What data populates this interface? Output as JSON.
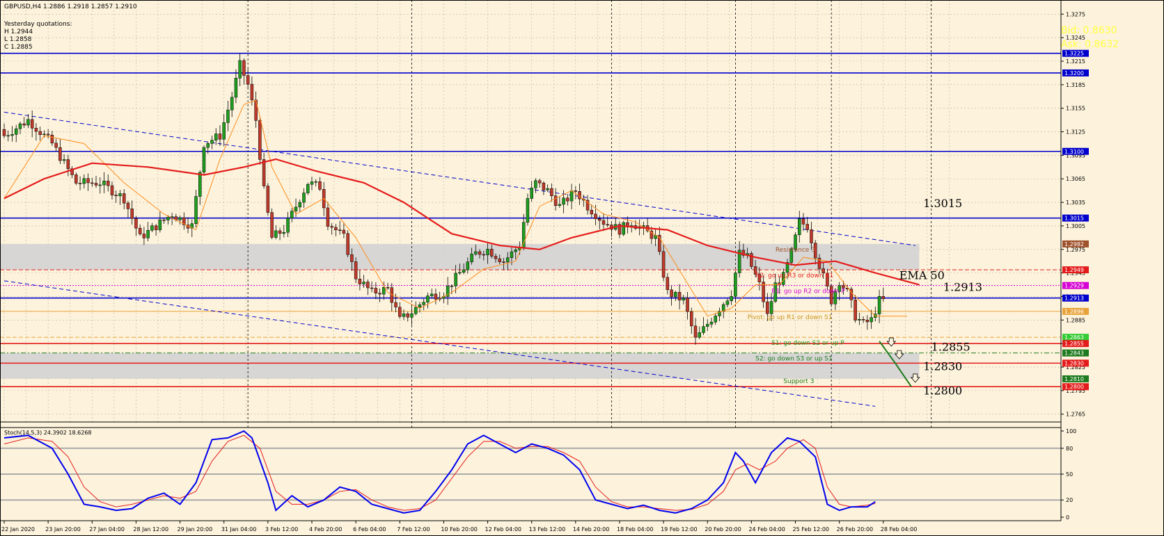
{
  "header": {
    "symbol_line": "GBPUSD,H4  1.2886 1.2918 1.2857 1.2910",
    "yq_title": "Yesterday quotations:",
    "yq_high": "H 1.2944",
    "yq_low": "L 1.2858",
    "yq_close": "C 1.2885"
  },
  "quotes": {
    "bid": "Bid: 0.8630",
    "ask": "Ask: 0.8632"
  },
  "colors": {
    "background": "#fdf3dc",
    "bull": "#1e9e1e",
    "bear": "#c0392b",
    "ema": "#e41b1b",
    "fast_ma": "#ff8c1a",
    "levels": "#0000cc",
    "channel": "#0000cc",
    "zone": "#d3d3d3",
    "stoch_main": "#0000ee",
    "stoch_signal": "#e41b1b",
    "quote": "#ffff40"
  },
  "chart_data": {
    "type": "candlestick",
    "ylim": [
      1.2755,
      1.3293
    ],
    "y_ticks": [
      "1.3275",
      "1.3245",
      "1.3215",
      "1.3185",
      "1.3155",
      "1.3125",
      "1.3095",
      "1.3065",
      "1.3035",
      "1.3005",
      "1.2975",
      "1.2945",
      "1.2915",
      "1.2885",
      "1.2855",
      "1.2825",
      "1.2795",
      "1.2765"
    ],
    "x_labels": [
      {
        "label": "22 Jan 2020",
        "i": 0
      },
      {
        "label": "23 Jan 20:00",
        "i": 11
      },
      {
        "label": "27 Jan 04:00",
        "i": 22
      },
      {
        "label": "28 Jan 12:00",
        "i": 33
      },
      {
        "label": "29 Jan 20:00",
        "i": 44
      },
      {
        "label": "31 Jan 04:00",
        "i": 55
      },
      {
        "label": "3 Feb 12:00",
        "i": 66
      },
      {
        "label": "4 Feb 20:00",
        "i": 77
      },
      {
        "label": "6 Feb 04:00",
        "i": 88
      },
      {
        "label": "7 Feb 12:00",
        "i": 99
      },
      {
        "label": "10 Feb 20:00",
        "i": 110
      },
      {
        "label": "12 Feb 04:00",
        "i": 121
      },
      {
        "label": "13 Feb 12:00",
        "i": 132
      },
      {
        "label": "14 Feb 20:00",
        "i": 143
      },
      {
        "label": "18 Feb 04:00",
        "i": 154
      },
      {
        "label": "19 Feb 12:00",
        "i": 165
      },
      {
        "label": "20 Feb 20:00",
        "i": 176
      },
      {
        "label": "24 Feb 04:00",
        "i": 187
      },
      {
        "label": "25 Feb 12:00",
        "i": 198
      },
      {
        "label": "26 Feb 20:00",
        "i": 209
      },
      {
        "label": "28 Feb 04:00",
        "i": 220
      }
    ],
    "close_waypoints": [
      [
        0,
        1.312
      ],
      [
        6,
        1.314
      ],
      [
        12,
        1.311
      ],
      [
        18,
        1.306
      ],
      [
        24,
        1.306
      ],
      [
        30,
        1.304
      ],
      [
        34,
        1.299
      ],
      [
        42,
        1.302
      ],
      [
        47,
        1.3005
      ],
      [
        50,
        1.311
      ],
      [
        54,
        1.312
      ],
      [
        57,
        1.317
      ],
      [
        59,
        1.321
      ],
      [
        61,
        1.3185
      ],
      [
        63,
        1.314
      ],
      [
        65,
        1.305
      ],
      [
        67,
        1.299
      ],
      [
        70,
        1.3
      ],
      [
        73,
        1.303
      ],
      [
        76,
        1.306
      ],
      [
        79,
        1.3055
      ],
      [
        81,
        1.301
      ],
      [
        85,
        1.299
      ],
      [
        88,
        1.294
      ],
      [
        92,
        1.292
      ],
      [
        96,
        1.2925
      ],
      [
        99,
        1.2885
      ],
      [
        102,
        1.2895
      ],
      [
        106,
        1.2915
      ],
      [
        110,
        1.292
      ],
      [
        114,
        1.2945
      ],
      [
        118,
        1.297
      ],
      [
        121,
        1.2975
      ],
      [
        125,
        1.296
      ],
      [
        129,
        1.298
      ],
      [
        131,
        1.304
      ],
      [
        133,
        1.306
      ],
      [
        136,
        1.305
      ],
      [
        139,
        1.303
      ],
      [
        143,
        1.305
      ],
      [
        146,
        1.303
      ],
      [
        150,
        1.301
      ],
      [
        154,
        1.3
      ],
      [
        157,
        1.301
      ],
      [
        160,
        1.3
      ],
      [
        163,
        1.299
      ],
      [
        166,
        1.292
      ],
      [
        170,
        1.291
      ],
      [
        173,
        1.286
      ],
      [
        176,
        1.288
      ],
      [
        179,
        1.29
      ],
      [
        182,
        1.292
      ],
      [
        184,
        1.297
      ],
      [
        186,
        1.2965
      ],
      [
        189,
        1.293
      ],
      [
        191,
        1.289
      ],
      [
        193,
        1.293
      ],
      [
        195,
        1.294
      ],
      [
        197,
        1.297
      ],
      [
        199,
        1.301
      ],
      [
        201,
        1.3005
      ],
      [
        203,
        1.297
      ],
      [
        205,
        1.294
      ],
      [
        207,
        1.291
      ],
      [
        209,
        1.2935
      ],
      [
        211,
        1.292
      ],
      [
        213,
        1.289
      ],
      [
        215,
        1.288
      ],
      [
        217,
        1.2885
      ],
      [
        219,
        1.291
      ],
      [
        220,
        1.291
      ]
    ],
    "candle_count": 221,
    "ema50": [
      [
        0,
        1.304
      ],
      [
        10,
        1.3065
      ],
      [
        22,
        1.3085
      ],
      [
        36,
        1.308
      ],
      [
        50,
        1.307
      ],
      [
        60,
        1.308
      ],
      [
        68,
        1.309
      ],
      [
        78,
        1.3075
      ],
      [
        90,
        1.306
      ],
      [
        100,
        1.3035
      ],
      [
        112,
        1.2995
      ],
      [
        124,
        1.298
      ],
      [
        134,
        1.2975
      ],
      [
        142,
        1.299
      ],
      [
        154,
        1.3005
      ],
      [
        166,
        1.3
      ],
      [
        176,
        1.298
      ],
      [
        188,
        1.2965
      ],
      [
        198,
        1.2955
      ],
      [
        208,
        1.296
      ],
      [
        218,
        1.2945
      ],
      [
        229,
        1.293
      ]
    ],
    "fast_ma": [
      [
        0,
        1.304
      ],
      [
        10,
        1.312
      ],
      [
        20,
        1.311
      ],
      [
        30,
        1.306
      ],
      [
        40,
        1.302
      ],
      [
        48,
        1.3
      ],
      [
        54,
        1.309
      ],
      [
        60,
        1.316
      ],
      [
        63,
        1.3165
      ],
      [
        67,
        1.308
      ],
      [
        73,
        1.302
      ],
      [
        80,
        1.304
      ],
      [
        88,
        1.299
      ],
      [
        96,
        1.292
      ],
      [
        104,
        1.29
      ],
      [
        112,
        1.292
      ],
      [
        120,
        1.295
      ],
      [
        128,
        1.296
      ],
      [
        134,
        1.303
      ],
      [
        142,
        1.305
      ],
      [
        150,
        1.302
      ],
      [
        158,
        1.301
      ],
      [
        164,
        1.299
      ],
      [
        170,
        1.294
      ],
      [
        176,
        1.289
      ],
      [
        182,
        1.29
      ],
      [
        188,
        1.293
      ],
      [
        194,
        1.293
      ],
      [
        200,
        1.2965
      ],
      [
        206,
        1.296
      ],
      [
        212,
        1.292
      ],
      [
        218,
        1.289
      ],
      [
        226,
        1.289
      ]
    ],
    "h_levels": [
      {
        "price": 1.3225,
        "label": "1.3225",
        "style": "solid",
        "color": "#0000cc"
      },
      {
        "price": 1.32,
        "label": "1.3200",
        "style": "solid",
        "color": "#0000cc"
      },
      {
        "price": 1.31,
        "label": "1.3100",
        "style": "solid",
        "color": "#0000cc"
      },
      {
        "price": 1.3015,
        "label": "1.3015",
        "style": "solid",
        "color": "#0000cc"
      },
      {
        "price": 1.2913,
        "label": "1.2913",
        "style": "solid",
        "color": "#0000cc"
      },
      {
        "price": 1.2855,
        "label": "1.2855",
        "style": "solid",
        "color": "#e41b1b"
      },
      {
        "price": 1.283,
        "label": "1.2830",
        "style": "solid",
        "color": "#e41b1b"
      },
      {
        "price": 1.28,
        "label": "1.2800",
        "style": "solid",
        "color": "#e41b1b"
      }
    ],
    "pivot_lines": [
      {
        "price": 1.2949,
        "style": "dashed",
        "color": "#e41b1b",
        "text": "R2: go up R3 or down R1",
        "text_i": 188,
        "text_color": "#e41b1b"
      },
      {
        "price": 1.2929,
        "style": "dotted",
        "color": "#d400d4",
        "text": "R1: go up R2 or down P",
        "text_i": 192,
        "text_color": "#d400d4"
      },
      {
        "price": 1.2896,
        "style": "solid",
        "color": "#e8a33a",
        "text": "Pivot: go up R1 or down S1",
        "text_i": 186,
        "text_color": "#c8941e"
      },
      {
        "price": 1.2863,
        "style": "dashed",
        "color": "#e8a33a",
        "text": "S1: go down S2 or up P",
        "text_i": 192,
        "text_color": "#1e9e1e"
      },
      {
        "price": 1.2843,
        "style": "dashdot",
        "color": "#1e7a1e",
        "text": "S2: go down S3 or up S1",
        "text_i": 188,
        "text_color": "#1e7a1e"
      }
    ],
    "zones": [
      {
        "top": 1.2982,
        "bottom": 1.2949,
        "label": "Resistance 3",
        "label_i": 193,
        "label_color": "#a0522d"
      },
      {
        "top": 1.2843,
        "bottom": 1.281,
        "label": "Support 3",
        "label_i": 195,
        "label_color": "#1e7a1e"
      }
    ],
    "price_tags": [
      {
        "price": 1.3225,
        "text": "1.3225",
        "bg": "#0000cc",
        "fg": "#ffffff"
      },
      {
        "price": 1.32,
        "text": "1.3200",
        "bg": "#0000cc",
        "fg": "#ffffff"
      },
      {
        "price": 1.31,
        "text": "1.3100",
        "bg": "#0000cc",
        "fg": "#ffffff"
      },
      {
        "price": 1.3015,
        "text": "1.3015",
        "bg": "#0000cc",
        "fg": "#ffffff"
      },
      {
        "price": 1.2982,
        "text": "1.2982",
        "bg": "#a0522d",
        "fg": "#ffffff"
      },
      {
        "price": 1.2949,
        "text": "1.2949",
        "bg": "#e41b1b",
        "fg": "#ffffff"
      },
      {
        "price": 1.2929,
        "text": "1.2929",
        "bg": "#d400d4",
        "fg": "#ffffff"
      },
      {
        "price": 1.2913,
        "text": "1.2913",
        "bg": "#0000cc",
        "fg": "#ffffff"
      },
      {
        "price": 1.2896,
        "text": "1.2896",
        "bg": "#e8a33a",
        "fg": "#ffffff"
      },
      {
        "price": 1.2863,
        "text": "1.2863",
        "bg": "#33cc33",
        "fg": "#ffffff"
      },
      {
        "price": 1.2855,
        "text": "1.2855",
        "bg": "#e41b1b",
        "fg": "#ffffff"
      },
      {
        "price": 1.2843,
        "text": "1.2843",
        "bg": "#1e7a1e",
        "fg": "#ffffff"
      },
      {
        "price": 1.283,
        "text": "1.2830",
        "bg": "#e41b1b",
        "fg": "#ffffff"
      },
      {
        "price": 1.281,
        "text": "1.2810",
        "bg": "#1e7a1e",
        "fg": "#ffffff"
      },
      {
        "price": 1.28,
        "text": "1.2800",
        "bg": "#e41b1b",
        "fg": "#ffffff"
      }
    ],
    "channel_lines": [
      {
        "from": [
          0,
          1.315
        ],
        "to": [
          228,
          1.298
        ]
      },
      {
        "from": [
          0,
          1.2935
        ],
        "to": [
          218,
          1.2775
        ]
      }
    ],
    "big_labels": [
      {
        "text": "1.3015",
        "price": 1.3029,
        "i": 230
      },
      {
        "text": "EMA 50",
        "price": 1.2937,
        "i": 224
      },
      {
        "text": "1.2913",
        "price": 1.2922,
        "i": 235
      },
      {
        "text": "1.2855",
        "price": 1.2846,
        "i": 232
      },
      {
        "text": "1.2830",
        "price": 1.2821,
        "i": 230
      },
      {
        "text": "1.2800",
        "price": 1.279,
        "i": 230
      }
    ],
    "forecast": [
      [
        219,
        1.2858
      ],
      [
        223,
        1.283
      ],
      [
        227,
        1.28
      ]
    ],
    "forecast_arrows": [
      [
        222,
        1.2856
      ],
      [
        224,
        1.284
      ],
      [
        228,
        1.281
      ]
    ],
    "vlines": [
      61,
      102,
      152,
      183,
      207,
      232
    ],
    "stoch": {
      "title": "Stoch(14,5,3) 24.3902 18.6268",
      "ylim": [
        0,
        100
      ],
      "y_ticks": [
        "100",
        "80",
        "50",
        "20",
        "0"
      ],
      "levels": [
        80,
        50,
        20
      ],
      "main": [
        [
          0,
          92
        ],
        [
          6,
          95
        ],
        [
          12,
          80
        ],
        [
          16,
          50
        ],
        [
          20,
          15
        ],
        [
          24,
          12
        ],
        [
          28,
          8
        ],
        [
          32,
          10
        ],
        [
          36,
          22
        ],
        [
          40,
          28
        ],
        [
          44,
          15
        ],
        [
          48,
          40
        ],
        [
          52,
          90
        ],
        [
          56,
          92
        ],
        [
          60,
          100
        ],
        [
          62,
          92
        ],
        [
          66,
          40
        ],
        [
          68,
          8
        ],
        [
          72,
          25
        ],
        [
          76,
          12
        ],
        [
          80,
          20
        ],
        [
          84,
          35
        ],
        [
          88,
          30
        ],
        [
          92,
          15
        ],
        [
          96,
          10
        ],
        [
          100,
          5
        ],
        [
          104,
          8
        ],
        [
          108,
          30
        ],
        [
          112,
          55
        ],
        [
          116,
          85
        ],
        [
          120,
          95
        ],
        [
          124,
          85
        ],
        [
          128,
          75
        ],
        [
          132,
          85
        ],
        [
          136,
          80
        ],
        [
          140,
          72
        ],
        [
          144,
          55
        ],
        [
          148,
          20
        ],
        [
          152,
          15
        ],
        [
          156,
          10
        ],
        [
          160,
          14
        ],
        [
          164,
          8
        ],
        [
          168,
          5
        ],
        [
          172,
          10
        ],
        [
          176,
          20
        ],
        [
          180,
          40
        ],
        [
          183,
          75
        ],
        [
          185,
          65
        ],
        [
          188,
          40
        ],
        [
          192,
          75
        ],
        [
          196,
          92
        ],
        [
          199,
          88
        ],
        [
          203,
          70
        ],
        [
          206,
          15
        ],
        [
          209,
          8
        ],
        [
          212,
          12
        ],
        [
          216,
          12
        ],
        [
          218,
          18
        ]
      ],
      "signal": [
        [
          0,
          85
        ],
        [
          6,
          92
        ],
        [
          12,
          88
        ],
        [
          16,
          70
        ],
        [
          20,
          35
        ],
        [
          24,
          18
        ],
        [
          28,
          12
        ],
        [
          32,
          15
        ],
        [
          36,
          20
        ],
        [
          40,
          25
        ],
        [
          44,
          22
        ],
        [
          48,
          30
        ],
        [
          52,
          65
        ],
        [
          56,
          88
        ],
        [
          60,
          95
        ],
        [
          64,
          80
        ],
        [
          68,
          30
        ],
        [
          72,
          15
        ],
        [
          76,
          15
        ],
        [
          80,
          20
        ],
        [
          84,
          30
        ],
        [
          88,
          32
        ],
        [
          92,
          20
        ],
        [
          96,
          12
        ],
        [
          100,
          8
        ],
        [
          104,
          10
        ],
        [
          108,
          20
        ],
        [
          112,
          45
        ],
        [
          116,
          70
        ],
        [
          120,
          88
        ],
        [
          124,
          88
        ],
        [
          128,
          80
        ],
        [
          132,
          82
        ],
        [
          136,
          82
        ],
        [
          140,
          75
        ],
        [
          144,
          65
        ],
        [
          148,
          35
        ],
        [
          152,
          18
        ],
        [
          156,
          12
        ],
        [
          160,
          12
        ],
        [
          164,
          10
        ],
        [
          168,
          8
        ],
        [
          172,
          9
        ],
        [
          176,
          15
        ],
        [
          180,
          30
        ],
        [
          183,
          55
        ],
        [
          186,
          62
        ],
        [
          189,
          55
        ],
        [
          193,
          65
        ],
        [
          196,
          80
        ],
        [
          200,
          90
        ],
        [
          203,
          80
        ],
        [
          206,
          35
        ],
        [
          209,
          15
        ],
        [
          212,
          12
        ],
        [
          216,
          14
        ],
        [
          218,
          16
        ]
      ]
    }
  }
}
